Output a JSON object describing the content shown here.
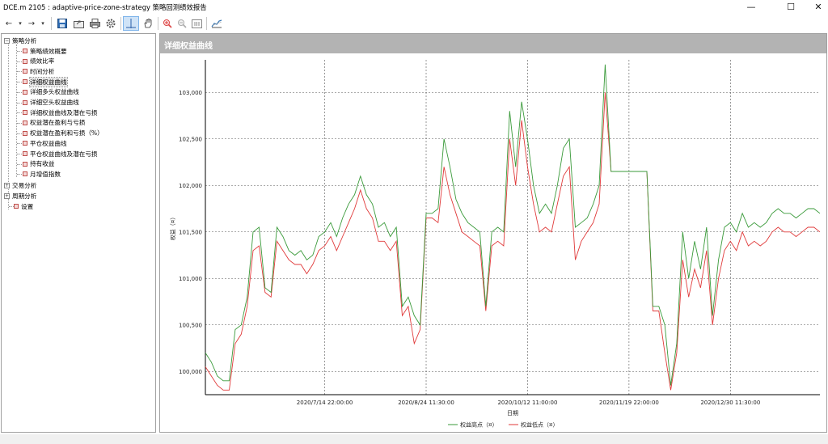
{
  "window": {
    "title": "DCE.m 2105 : adaptive-price-zone-strategy 策略回测绩效报告",
    "controls": [
      "—",
      "☐",
      "✕"
    ]
  },
  "toolbar": {
    "back": "←",
    "forward": "→",
    "dropdown": "▾"
  },
  "tree": {
    "groups": [
      {
        "label": "策略分析",
        "expanded": true,
        "items": [
          "策略绩效概要",
          "绩效比率",
          "时间分析",
          "详细权益曲线",
          "详细多头权益曲线",
          "详细空头权益曲线",
          "详细权益曲线及潜在亏损",
          "权益潜在盈利与亏损",
          "权益潜在盈利和亏损（%）",
          "平仓权益曲线",
          "平仓权益曲线及潜在亏损",
          "持有收益",
          "月增值指数"
        ]
      },
      {
        "label": "交易分析",
        "expanded": false,
        "items": []
      },
      {
        "label": "周期分析",
        "expanded": false,
        "items": []
      }
    ],
    "settings": "设置",
    "selected": "详细权益曲线"
  },
  "report": {
    "header": "详细权益曲线"
  },
  "chart_data": {
    "type": "line",
    "ylabel": "权益（¤）",
    "xlabel": "日期",
    "ylim": [
      99750,
      103350
    ],
    "yticks": [
      "100,000",
      "100,500",
      "101,000",
      "101,500",
      "102,000",
      "102,500",
      "103,000"
    ],
    "ytick_values": [
      100000,
      100500,
      101000,
      101500,
      102000,
      102500,
      103000
    ],
    "xticks": [
      "2020/7/14 22:00:00",
      "2020/8/24 11:30:00",
      "2020/10/12 11:00:00",
      "2020/11/19 22:00:00",
      "2020/12/30 11:30:00"
    ],
    "xtick_positions": [
      20,
      37,
      54,
      71,
      88
    ],
    "xlim": [
      0,
      103
    ],
    "legend_position": "bottom",
    "grid": true,
    "series": [
      {
        "name": "权益高点（¤）",
        "color": "#3a9a3a",
        "x": [
          0,
          1,
          2,
          3,
          4,
          5,
          6,
          7,
          8,
          9,
          10,
          11,
          12,
          13,
          14,
          15,
          16,
          17,
          18,
          19,
          20,
          21,
          22,
          23,
          24,
          25,
          26,
          27,
          28,
          29,
          30,
          31,
          32,
          33,
          34,
          35,
          36,
          37,
          38,
          39,
          40,
          41,
          42,
          43,
          44,
          45,
          46,
          47,
          48,
          49,
          50,
          51,
          52,
          53,
          54,
          55,
          56,
          57,
          58,
          59,
          60,
          61,
          62,
          63,
          64,
          65,
          66,
          67,
          68,
          69,
          70,
          71,
          72,
          73,
          74,
          75,
          76,
          77,
          78,
          79,
          80,
          81,
          82,
          83,
          84,
          85,
          86,
          87,
          88,
          89,
          90,
          91,
          92,
          93,
          94,
          95,
          96,
          97,
          98,
          99,
          100,
          101,
          102,
          103
        ],
        "y": [
          100200,
          100100,
          99950,
          99900,
          99900,
          100450,
          100500,
          100800,
          101500,
          101550,
          100900,
          100850,
          101550,
          101450,
          101300,
          101250,
          101300,
          101200,
          101250,
          101450,
          101500,
          101600,
          101450,
          101650,
          101800,
          101900,
          102100,
          101900,
          101800,
          101550,
          101600,
          101450,
          101550,
          100700,
          100800,
          100600,
          100500,
          101700,
          101700,
          101750,
          102500,
          102200,
          101850,
          101700,
          101600,
          101550,
          101500,
          100700,
          101500,
          101550,
          101500,
          102800,
          102200,
          102900,
          102500,
          102000,
          101700,
          101800,
          101700,
          102000,
          102400,
          102500,
          101550,
          101600,
          101650,
          101800,
          102000,
          103300,
          102150,
          102150,
          102150,
          102150,
          102150,
          102150,
          102150,
          100700,
          100700,
          100500,
          99850,
          100300,
          101500,
          101000,
          101400,
          101100,
          101550,
          100600,
          101200,
          101550,
          101600,
          101500,
          101700,
          101550,
          101600,
          101550,
          101600,
          101700,
          101750,
          101700,
          101700,
          101650,
          101700,
          101750,
          101750,
          101700
        ],
        "values_note": ""
      },
      {
        "name": "权益低点（¤）",
        "color": "#e03a3a",
        "x": [
          0,
          1,
          2,
          3,
          4,
          5,
          6,
          7,
          8,
          9,
          10,
          11,
          12,
          13,
          14,
          15,
          16,
          17,
          18,
          19,
          20,
          21,
          22,
          23,
          24,
          25,
          26,
          27,
          28,
          29,
          30,
          31,
          32,
          33,
          34,
          35,
          36,
          37,
          38,
          39,
          40,
          41,
          42,
          43,
          44,
          45,
          46,
          47,
          48,
          49,
          50,
          51,
          52,
          53,
          54,
          55,
          56,
          57,
          58,
          59,
          60,
          61,
          62,
          63,
          64,
          65,
          66,
          67,
          68,
          69,
          70,
          71,
          72,
          73,
          74,
          75,
          76,
          77,
          78,
          79,
          80,
          81,
          82,
          83,
          84,
          85,
          86,
          87,
          88,
          89,
          90,
          91,
          92,
          93,
          94,
          95,
          96,
          97,
          98,
          99,
          100,
          101,
          102,
          103
        ],
        "y": [
          100050,
          99950,
          99850,
          99800,
          99800,
          100300,
          100400,
          100700,
          101300,
          101350,
          100850,
          100800,
          101400,
          101300,
          101200,
          101150,
          101150,
          101050,
          101150,
          101300,
          101350,
          101450,
          101300,
          101450,
          101600,
          101750,
          101950,
          101750,
          101650,
          101400,
          101400,
          101300,
          101400,
          100600,
          100700,
          100300,
          100450,
          101650,
          101650,
          101600,
          102200,
          101900,
          101700,
          101500,
          101450,
          101400,
          101350,
          100650,
          101350,
          101400,
          101350,
          102500,
          102000,
          102700,
          102200,
          101800,
          101500,
          101550,
          101500,
          101800,
          102100,
          102200,
          101200,
          101400,
          101500,
          101600,
          101800,
          103000,
          102150,
          102150,
          102150,
          102150,
          102150,
          102150,
          102150,
          100650,
          100650,
          100200,
          99800,
          100200,
          101200,
          100800,
          101100,
          100900,
          101300,
          100500,
          101000,
          101300,
          101400,
          101300,
          101500,
          101350,
          101400,
          101350,
          101400,
          101500,
          101550,
          101500,
          101500,
          101450,
          101500,
          101550,
          101550,
          101500
        ]
      }
    ]
  },
  "legend": {
    "high": "权益高点（¤）",
    "low": "权益低点（¤）"
  }
}
